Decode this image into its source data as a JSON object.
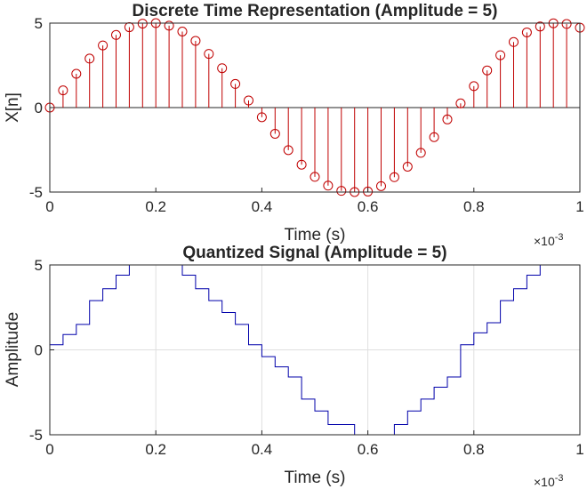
{
  "chart_data": [
    {
      "type": "stem",
      "title": "Discrete Time Representation (Amplitude = 5)",
      "xlabel": "Time (s)",
      "ylabel": "X[n]",
      "x_scale_label": "×10",
      "x_scale_exponent": "-3",
      "xlim": [
        0,
        1
      ],
      "ylim": [
        -5,
        5
      ],
      "xticks": [
        0,
        0.2,
        0.4,
        0.6,
        0.8,
        1
      ],
      "xtick_labels": [
        "0",
        "0.2",
        "0.4",
        "0.6",
        "0.8",
        "1"
      ],
      "yticks": [
        -5,
        0,
        5
      ],
      "ytick_labels": [
        "-5",
        "0",
        "5"
      ],
      "grid": false,
      "color": "#c00000",
      "marker": "circle",
      "x": [
        0,
        0.025,
        0.05,
        0.075,
        0.1,
        0.125,
        0.15,
        0.175,
        0.2,
        0.225,
        0.25,
        0.275,
        0.3,
        0.325,
        0.35,
        0.375,
        0.4,
        0.425,
        0.45,
        0.475,
        0.5,
        0.525,
        0.55,
        0.575,
        0.6,
        0.625,
        0.65,
        0.675,
        0.7,
        0.725,
        0.75,
        0.775,
        0.8,
        0.825,
        0.85,
        0.875,
        0.9,
        0.925,
        0.95,
        0.975,
        1.0
      ],
      "values": [
        0.0,
        1.02,
        2.0,
        2.9,
        3.68,
        4.3,
        4.76,
        4.97,
        5.0,
        4.85,
        4.5,
        3.95,
        3.18,
        2.33,
        1.4,
        0.42,
        -0.57,
        -1.55,
        -2.52,
        -3.38,
        -4.1,
        -4.62,
        -4.93,
        -5.0,
        -4.97,
        -4.65,
        -4.12,
        -3.5,
        -2.68,
        -1.75,
        -0.7,
        0.25,
        1.27,
        2.2,
        3.1,
        3.88,
        4.45,
        4.8,
        4.99,
        4.95,
        4.73
      ]
    },
    {
      "type": "line",
      "title": "Quantized Signal (Amplitude = 5)",
      "xlabel": "Time (s)",
      "ylabel": "Amplitude",
      "x_scale_label": "×10",
      "x_scale_exponent": "-3",
      "xlim": [
        0,
        1
      ],
      "ylim": [
        -5,
        5
      ],
      "xticks": [
        0,
        0.2,
        0.4,
        0.6,
        0.8,
        1
      ],
      "xtick_labels": [
        "0",
        "0.2",
        "0.4",
        "0.6",
        "0.8",
        "1"
      ],
      "yticks": [
        -5,
        0,
        5
      ],
      "ytick_labels": [
        "-5",
        "0",
        "5"
      ],
      "grid": true,
      "step": true,
      "color": "#0000aa",
      "x": [
        0,
        0.025,
        0.05,
        0.075,
        0.1,
        0.125,
        0.15,
        0.175,
        0.2,
        0.225,
        0.25,
        0.275,
        0.3,
        0.325,
        0.35,
        0.375,
        0.4,
        0.425,
        0.45,
        0.475,
        0.5,
        0.525,
        0.55,
        0.575,
        0.6,
        0.625,
        0.65,
        0.675,
        0.7,
        0.725,
        0.75,
        0.775,
        0.8,
        0.825,
        0.85,
        0.875,
        0.9,
        0.925,
        0.95,
        0.975,
        1.0
      ],
      "values": [
        0.3,
        0.9,
        1.5,
        2.9,
        3.6,
        4.4,
        5.0,
        5.0,
        5.0,
        5.0,
        4.4,
        3.6,
        2.9,
        2.2,
        1.5,
        0.3,
        -0.4,
        -1.0,
        -1.6,
        -2.9,
        -3.6,
        -4.4,
        -4.4,
        -5.0,
        -5.0,
        -5.0,
        -4.4,
        -3.6,
        -2.9,
        -2.2,
        -1.6,
        0.3,
        1.0,
        1.6,
        2.9,
        3.6,
        4.4,
        5.0,
        5.0,
        5.0,
        5.0
      ]
    }
  ]
}
